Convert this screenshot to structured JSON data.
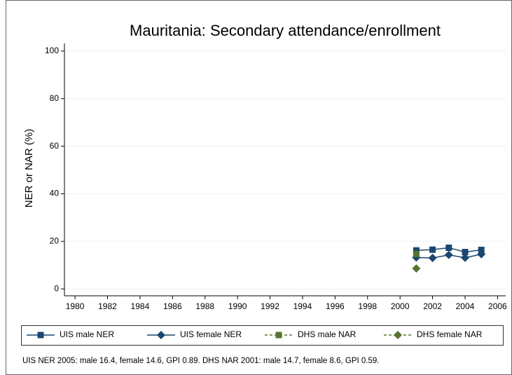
{
  "chart_data": {
    "type": "line",
    "title": "Mauritania: Secondary attendance/enrollment",
    "y_label": "NER or NAR (%)",
    "note": "UIS NER 2005: male 16.4, female 14.6, GPI 0.89. DHS NAR 2001: male 14.7, female 8.6, GPI 0.59.",
    "x": [
      2001,
      2002,
      2003,
      2004,
      2005
    ],
    "series": [
      {
        "name": "UIS male NER",
        "color": "#1a476f",
        "marker": "square",
        "dashed": false,
        "values": [
          16.2,
          16.5,
          17.3,
          15.5,
          16.4
        ]
      },
      {
        "name": "UIS female NER",
        "color": "#1a476f",
        "marker": "diamond",
        "dashed": false,
        "values": [
          13.2,
          13.0,
          14.3,
          13.1,
          14.6
        ]
      },
      {
        "name": "DHS male NAR",
        "color": "#55752f",
        "marker": "square",
        "dashed": true,
        "values": [
          14.7,
          null,
          null,
          null,
          null
        ]
      },
      {
        "name": "DHS female NAR",
        "color": "#55752f",
        "marker": "diamond",
        "dashed": true,
        "values": [
          8.6,
          null,
          null,
          null,
          null
        ]
      }
    ],
    "xlim": [
      1979.35,
      2006.5
    ],
    "xticks": [
      1980,
      1982,
      1984,
      1986,
      1988,
      1990,
      1992,
      1994,
      1996,
      1998,
      2000,
      2002,
      2004,
      2006
    ],
    "ylim": [
      -2.9,
      103.2
    ],
    "yticks": [
      0,
      20,
      40,
      60,
      80,
      100
    ],
    "grid": true
  }
}
